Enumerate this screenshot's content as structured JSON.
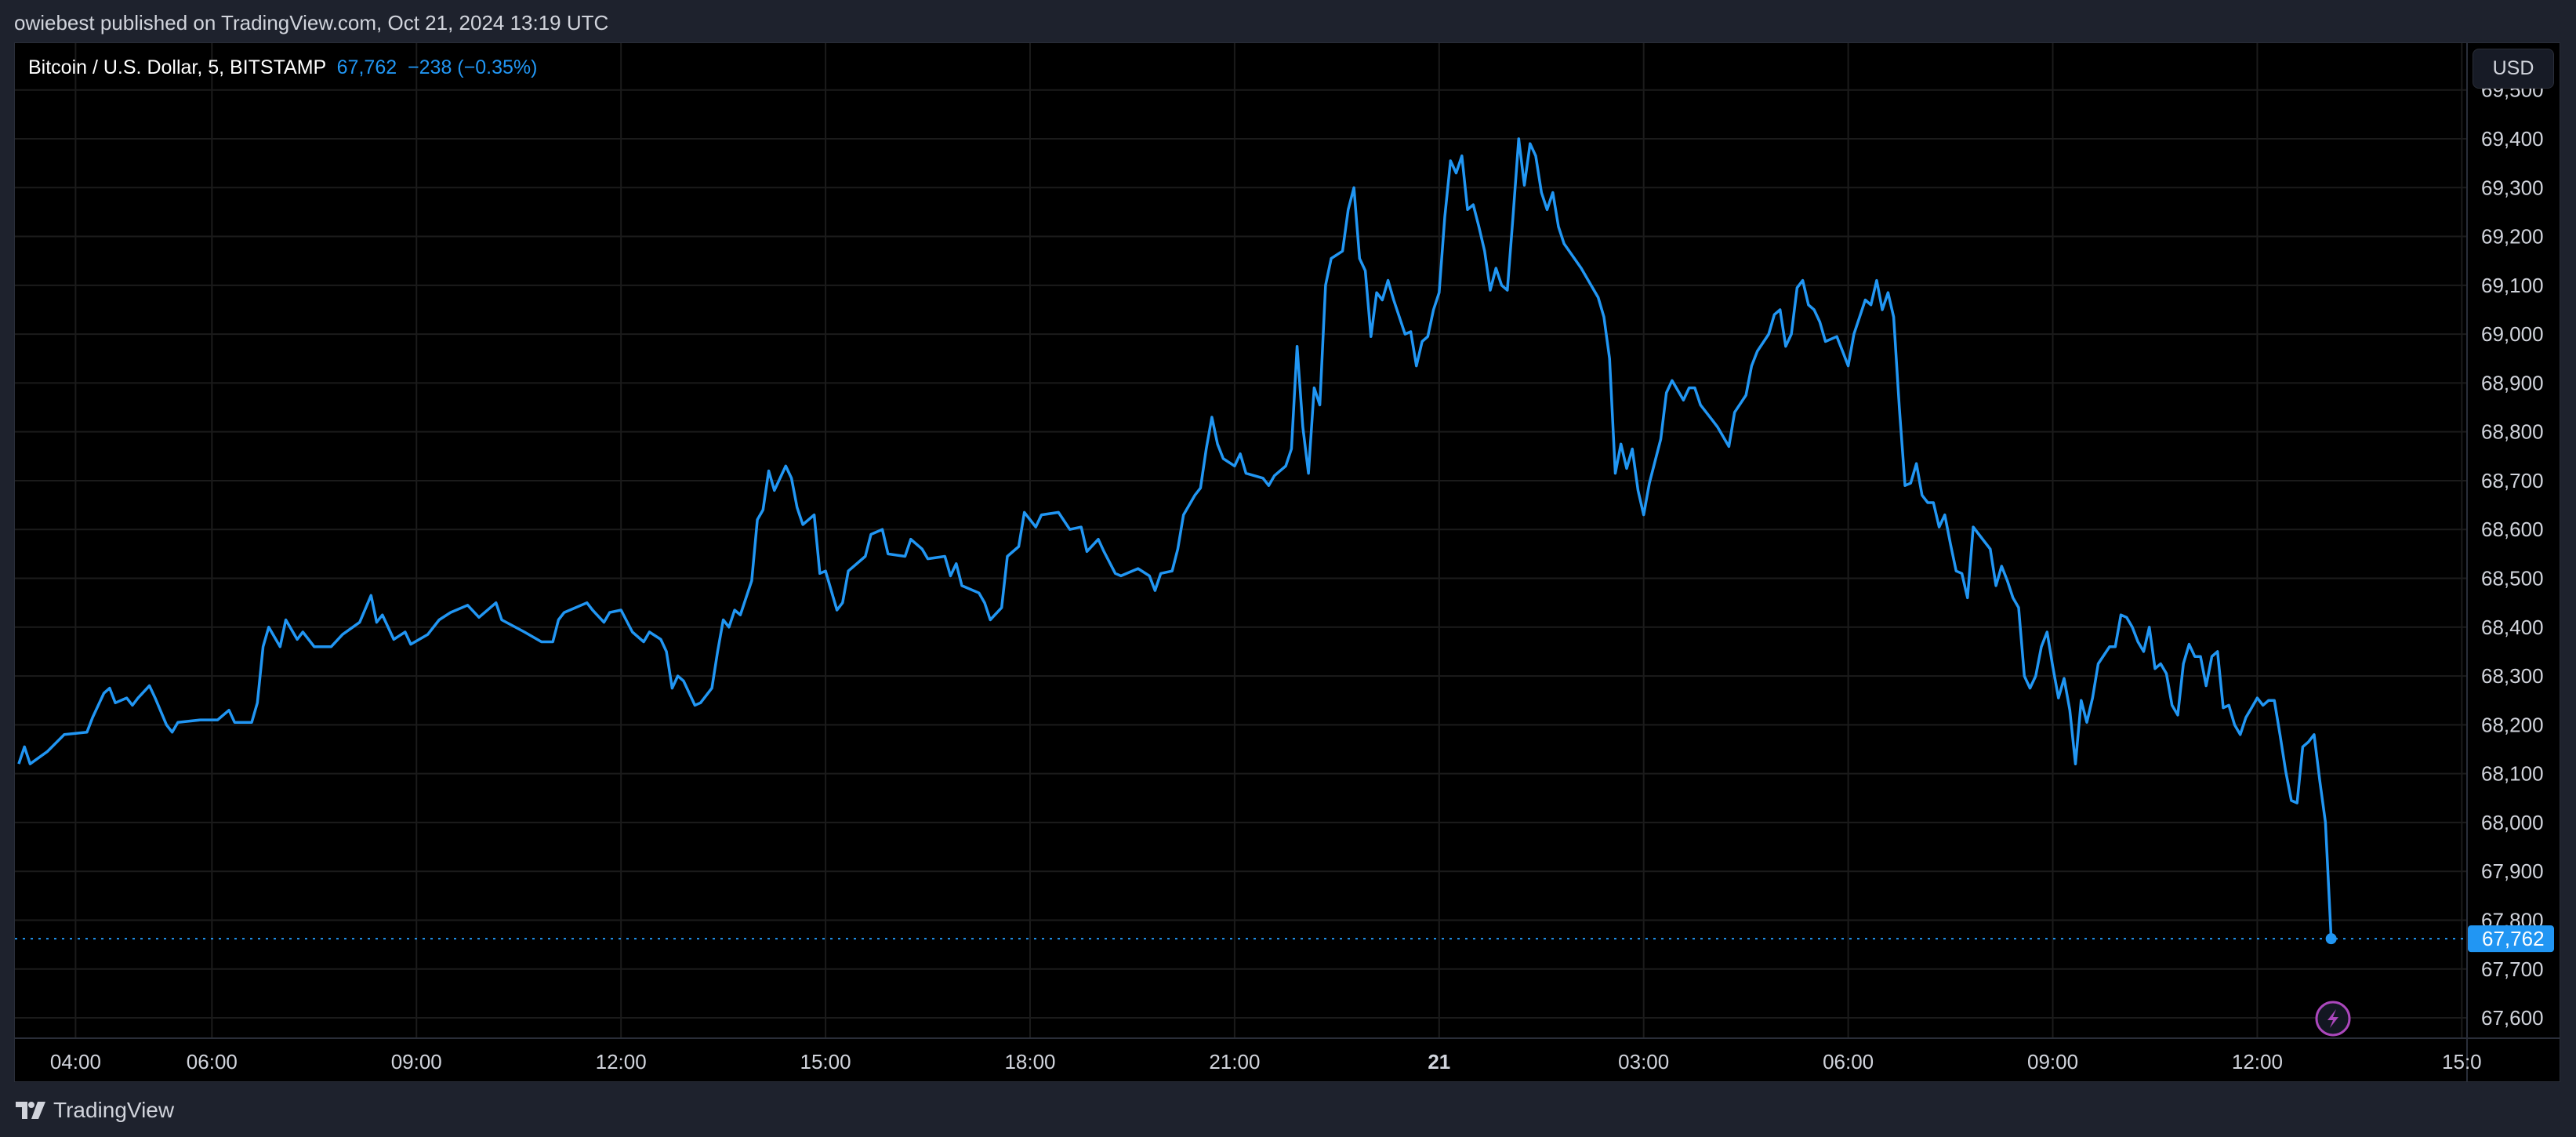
{
  "header": {
    "published": "owiebest published on TradingView.com, Oct 21, 2024 13:19 UTC"
  },
  "legend": {
    "symbol": "Bitcoin / U.S. Dollar, 5, BITSTAMP",
    "last": "67,762",
    "change": "−238 (−0.35%)"
  },
  "currency_button": "USD",
  "footer": {
    "brand": "TradingView"
  },
  "colors": {
    "line": "#2196f3",
    "background": "#000000",
    "page": "#1e222d",
    "grid": "#1b1b1b",
    "alert_icon": "#ab47bc"
  },
  "alert_icon": "lightning-icon",
  "chart_data": {
    "type": "line",
    "title": "",
    "grid": true,
    "y_scale": "linear",
    "ylim": [
      67550,
      69500
    ],
    "xlim": [
      "10-20 03:05",
      "10-21 15:15"
    ],
    "y_ticks": [
      "69,500",
      "69,400",
      "69,300",
      "69,200",
      "69,100",
      "69,000",
      "68,900",
      "68,800",
      "68,700",
      "68,600",
      "68,500",
      "68,400",
      "68,300",
      "68,200",
      "68,100",
      "68,000",
      "67,900",
      "67,800",
      "67,700",
      "67,600"
    ],
    "x_ticks": [
      {
        "t": "10-20 04:00",
        "label": "04:00"
      },
      {
        "t": "10-20 06:00",
        "label": "06:00"
      },
      {
        "t": "10-20 09:00",
        "label": "09:00"
      },
      {
        "t": "10-20 12:00",
        "label": "12:00"
      },
      {
        "t": "10-20 15:00",
        "label": "15:00"
      },
      {
        "t": "10-20 18:00",
        "label": "18:00"
      },
      {
        "t": "10-20 21:00",
        "label": "21:00"
      },
      {
        "t": "10-21 00:00",
        "label": "21",
        "bold": true
      },
      {
        "t": "10-21 03:00",
        "label": "03:00"
      },
      {
        "t": "10-21 06:00",
        "label": "06:00"
      },
      {
        "t": "10-21 09:00",
        "label": "09:00"
      },
      {
        "t": "10-21 12:00",
        "label": "12:00"
      },
      {
        "t": "10-21 15:00",
        "label": "15:0"
      }
    ],
    "last_price": {
      "value": 67762,
      "label": "67,762"
    },
    "points": [
      [
        "10-20 03:10",
        68120
      ],
      [
        "10-20 03:15",
        68155
      ],
      [
        "10-20 03:20",
        68120
      ],
      [
        "10-20 03:35",
        68145
      ],
      [
        "10-20 03:50",
        68180
      ],
      [
        "10-20 04:10",
        68185
      ],
      [
        "10-20 04:15",
        68215
      ],
      [
        "10-20 04:25",
        68265
      ],
      [
        "10-20 04:30",
        68275
      ],
      [
        "10-20 04:35",
        68245
      ],
      [
        "10-20 04:45",
        68255
      ],
      [
        "10-20 04:50",
        68240
      ],
      [
        "10-20 04:55",
        68255
      ],
      [
        "10-20 05:05",
        68280
      ],
      [
        "10-20 05:10",
        68255
      ],
      [
        "10-20 05:20",
        68200
      ],
      [
        "10-20 05:25",
        68185
      ],
      [
        "10-20 05:30",
        68205
      ],
      [
        "10-20 05:50",
        68210
      ],
      [
        "10-20 06:05",
        68210
      ],
      [
        "10-20 06:15",
        68230
      ],
      [
        "10-20 06:20",
        68205
      ],
      [
        "10-20 06:35",
        68205
      ],
      [
        "10-20 06:40",
        68245
      ],
      [
        "10-20 06:45",
        68360
      ],
      [
        "10-20 06:50",
        68400
      ],
      [
        "10-20 07:00",
        68360
      ],
      [
        "10-20 07:05",
        68415
      ],
      [
        "10-20 07:15",
        68375
      ],
      [
        "10-20 07:20",
        68390
      ],
      [
        "10-20 07:30",
        68360
      ],
      [
        "10-20 07:45",
        68360
      ],
      [
        "10-20 07:55",
        68385
      ],
      [
        "10-20 08:10",
        68410
      ],
      [
        "10-20 08:20",
        68465
      ],
      [
        "10-20 08:25",
        68410
      ],
      [
        "10-20 08:30",
        68425
      ],
      [
        "10-20 08:40",
        68375
      ],
      [
        "10-20 08:50",
        68390
      ],
      [
        "10-20 08:55",
        68365
      ],
      [
        "10-20 09:10",
        68385
      ],
      [
        "10-20 09:20",
        68415
      ],
      [
        "10-20 09:30",
        68430
      ],
      [
        "10-20 09:45",
        68445
      ],
      [
        "10-20 09:55",
        68420
      ],
      [
        "10-20 10:10",
        68450
      ],
      [
        "10-20 10:15",
        68415
      ],
      [
        "10-20 10:35",
        68390
      ],
      [
        "10-20 10:50",
        68370
      ],
      [
        "10-20 11:00",
        68370
      ],
      [
        "10-20 11:05",
        68415
      ],
      [
        "10-20 11:10",
        68430
      ],
      [
        "10-20 11:30",
        68450
      ],
      [
        "10-20 11:35",
        68435
      ],
      [
        "10-20 11:45",
        68410
      ],
      [
        "10-20 11:50",
        68430
      ],
      [
        "10-20 12:00",
        68435
      ],
      [
        "10-20 12:10",
        68390
      ],
      [
        "10-20 12:20",
        68370
      ],
      [
        "10-20 12:25",
        68390
      ],
      [
        "10-20 12:35",
        68375
      ],
      [
        "10-20 12:40",
        68350
      ],
      [
        "10-20 12:45",
        68275
      ],
      [
        "10-20 12:50",
        68300
      ],
      [
        "10-20 12:55",
        68290
      ],
      [
        "10-20 13:05",
        68240
      ],
      [
        "10-20 13:10",
        68245
      ],
      [
        "10-20 13:20",
        68275
      ],
      [
        "10-20 13:25",
        68350
      ],
      [
        "10-20 13:30",
        68415
      ],
      [
        "10-20 13:35",
        68400
      ],
      [
        "10-20 13:40",
        68435
      ],
      [
        "10-20 13:45",
        68425
      ],
      [
        "10-20 13:55",
        68495
      ],
      [
        "10-20 14:00",
        68620
      ],
      [
        "10-20 14:05",
        68640
      ],
      [
        "10-20 14:10",
        68720
      ],
      [
        "10-20 14:15",
        68680
      ],
      [
        "10-20 14:25",
        68730
      ],
      [
        "10-20 14:30",
        68705
      ],
      [
        "10-20 14:35",
        68645
      ],
      [
        "10-20 14:40",
        68610
      ],
      [
        "10-20 14:50",
        68630
      ],
      [
        "10-20 14:55",
        68510
      ],
      [
        "10-20 15:00",
        68515
      ],
      [
        "10-20 15:10",
        68435
      ],
      [
        "10-20 15:15",
        68450
      ],
      [
        "10-20 15:20",
        68515
      ],
      [
        "10-20 15:35",
        68545
      ],
      [
        "10-20 15:40",
        68590
      ],
      [
        "10-20 15:50",
        68600
      ],
      [
        "10-20 15:55",
        68550
      ],
      [
        "10-20 16:10",
        68545
      ],
      [
        "10-20 16:15",
        68580
      ],
      [
        "10-20 16:25",
        68560
      ],
      [
        "10-20 16:30",
        68540
      ],
      [
        "10-20 16:45",
        68545
      ],
      [
        "10-20 16:50",
        68505
      ],
      [
        "10-20 16:55",
        68530
      ],
      [
        "10-20 17:00",
        68485
      ],
      [
        "10-20 17:15",
        68470
      ],
      [
        "10-20 17:20",
        68450
      ],
      [
        "10-20 17:25",
        68415
      ],
      [
        "10-20 17:35",
        68440
      ],
      [
        "10-20 17:40",
        68545
      ],
      [
        "10-20 17:50",
        68565
      ],
      [
        "10-20 17:55",
        68635
      ],
      [
        "10-20 18:05",
        68605
      ],
      [
        "10-20 18:10",
        68630
      ],
      [
        "10-20 18:25",
        68635
      ],
      [
        "10-20 18:35",
        68600
      ],
      [
        "10-20 18:45",
        68605
      ],
      [
        "10-20 18:50",
        68555
      ],
      [
        "10-20 19:00",
        68580
      ],
      [
        "10-20 19:05",
        68555
      ],
      [
        "10-20 19:15",
        68510
      ],
      [
        "10-20 19:20",
        68505
      ],
      [
        "10-20 19:35",
        68520
      ],
      [
        "10-20 19:45",
        68505
      ],
      [
        "10-20 19:50",
        68475
      ],
      [
        "10-20 19:55",
        68510
      ],
      [
        "10-20 20:05",
        68515
      ],
      [
        "10-20 20:10",
        68560
      ],
      [
        "10-20 20:15",
        68630
      ],
      [
        "10-20 20:25",
        68670
      ],
      [
        "10-20 20:30",
        68685
      ],
      [
        "10-20 20:35",
        68765
      ],
      [
        "10-20 20:40",
        68830
      ],
      [
        "10-20 20:45",
        68775
      ],
      [
        "10-20 20:50",
        68745
      ],
      [
        "10-20 21:00",
        68730
      ],
      [
        "10-20 21:05",
        68755
      ],
      [
        "10-20 21:10",
        68715
      ],
      [
        "10-20 21:25",
        68705
      ],
      [
        "10-20 21:30",
        68690
      ],
      [
        "10-20 21:35",
        68710
      ],
      [
        "10-20 21:45",
        68730
      ],
      [
        "10-20 21:50",
        68765
      ],
      [
        "10-20 21:55",
        68975
      ],
      [
        "10-20 22:00",
        68810
      ],
      [
        "10-20 22:05",
        68715
      ],
      [
        "10-20 22:10",
        68890
      ],
      [
        "10-20 22:15",
        68855
      ],
      [
        "10-20 22:20",
        69100
      ],
      [
        "10-20 22:25",
        69155
      ],
      [
        "10-20 22:35",
        69170
      ],
      [
        "10-20 22:40",
        69255
      ],
      [
        "10-20 22:45",
        69300
      ],
      [
        "10-20 22:50",
        69155
      ],
      [
        "10-20 22:55",
        69130
      ],
      [
        "10-20 23:00",
        68995
      ],
      [
        "10-20 23:05",
        69085
      ],
      [
        "10-20 23:10",
        69070
      ],
      [
        "10-20 23:15",
        69110
      ],
      [
        "10-20 23:20",
        69070
      ],
      [
        "10-20 23:30",
        69000
      ],
      [
        "10-20 23:35",
        69005
      ],
      [
        "10-20 23:40",
        68935
      ],
      [
        "10-20 23:45",
        68985
      ],
      [
        "10-20 23:50",
        68995
      ],
      [
        "10-20 23:55",
        69050
      ],
      [
        "10-21 00:00",
        69085
      ],
      [
        "10-21 00:05",
        69240
      ],
      [
        "10-21 00:10",
        69355
      ],
      [
        "10-21 00:15",
        69330
      ],
      [
        "10-21 00:20",
        69365
      ],
      [
        "10-21 00:25",
        69255
      ],
      [
        "10-21 00:30",
        69265
      ],
      [
        "10-21 00:35",
        69220
      ],
      [
        "10-21 00:40",
        69170
      ],
      [
        "10-21 00:45",
        69090
      ],
      [
        "10-21 00:50",
        69135
      ],
      [
        "10-21 00:55",
        69100
      ],
      [
        "10-21 01:00",
        69090
      ],
      [
        "10-21 01:05",
        69240
      ],
      [
        "10-21 01:10",
        69400
      ],
      [
        "10-21 01:15",
        69305
      ],
      [
        "10-21 01:20",
        69390
      ],
      [
        "10-21 01:25",
        69365
      ],
      [
        "10-21 01:30",
        69290
      ],
      [
        "10-21 01:35",
        69255
      ],
      [
        "10-21 01:40",
        69290
      ],
      [
        "10-21 01:45",
        69220
      ],
      [
        "10-21 01:50",
        69185
      ],
      [
        "10-21 02:05",
        69135
      ],
      [
        "10-21 02:20",
        69075
      ],
      [
        "10-21 02:25",
        69035
      ],
      [
        "10-21 02:30",
        68950
      ],
      [
        "10-21 02:35",
        68715
      ],
      [
        "10-21 02:40",
        68775
      ],
      [
        "10-21 02:45",
        68725
      ],
      [
        "10-21 02:50",
        68765
      ],
      [
        "10-21 02:55",
        68680
      ],
      [
        "10-21 03:00",
        68630
      ],
      [
        "10-21 03:05",
        68695
      ],
      [
        "10-21 03:15",
        68785
      ],
      [
        "10-21 03:20",
        68880
      ],
      [
        "10-21 03:25",
        68905
      ],
      [
        "10-21 03:35",
        68865
      ],
      [
        "10-21 03:40",
        68890
      ],
      [
        "10-21 03:45",
        68890
      ],
      [
        "10-21 03:50",
        68855
      ],
      [
        "10-21 04:00",
        68825
      ],
      [
        "10-21 04:05",
        68810
      ],
      [
        "10-21 04:15",
        68770
      ],
      [
        "10-21 04:20",
        68840
      ],
      [
        "10-21 04:30",
        68875
      ],
      [
        "10-21 04:35",
        68935
      ],
      [
        "10-21 04:40",
        68965
      ],
      [
        "10-21 04:50",
        69000
      ],
      [
        "10-21 04:55",
        69040
      ],
      [
        "10-21 05:00",
        69050
      ],
      [
        "10-21 05:05",
        68975
      ],
      [
        "10-21 05:10",
        69000
      ],
      [
        "10-21 05:15",
        69095
      ],
      [
        "10-21 05:20",
        69110
      ],
      [
        "10-21 05:25",
        69060
      ],
      [
        "10-21 05:30",
        69050
      ],
      [
        "10-21 05:35",
        69025
      ],
      [
        "10-21 05:40",
        68985
      ],
      [
        "10-21 05:50",
        68995
      ],
      [
        "10-21 05:55",
        68965
      ],
      [
        "10-21 06:00",
        68935
      ],
      [
        "10-21 06:05",
        69000
      ],
      [
        "10-21 06:15",
        69070
      ],
      [
        "10-21 06:20",
        69060
      ],
      [
        "10-21 06:25",
        69110
      ],
      [
        "10-21 06:30",
        69050
      ],
      [
        "10-21 06:35",
        69085
      ],
      [
        "10-21 06:40",
        69035
      ],
      [
        "10-21 06:45",
        68850
      ],
      [
        "10-21 06:50",
        68690
      ],
      [
        "10-21 06:55",
        68695
      ],
      [
        "10-21 07:00",
        68735
      ],
      [
        "10-21 07:05",
        68670
      ],
      [
        "10-21 07:10",
        68655
      ],
      [
        "10-21 07:15",
        68655
      ],
      [
        "10-21 07:20",
        68605
      ],
      [
        "10-21 07:25",
        68630
      ],
      [
        "10-21 07:30",
        68570
      ],
      [
        "10-21 07:35",
        68515
      ],
      [
        "10-21 07:40",
        68510
      ],
      [
        "10-21 07:45",
        68460
      ],
      [
        "10-21 07:50",
        68605
      ],
      [
        "10-21 07:55",
        68590
      ],
      [
        "10-21 08:05",
        68560
      ],
      [
        "10-21 08:10",
        68485
      ],
      [
        "10-21 08:15",
        68525
      ],
      [
        "10-21 08:20",
        68495
      ],
      [
        "10-21 08:25",
        68460
      ],
      [
        "10-21 08:30",
        68440
      ],
      [
        "10-21 08:35",
        68300
      ],
      [
        "10-21 08:40",
        68275
      ],
      [
        "10-21 08:45",
        68300
      ],
      [
        "10-21 08:50",
        68360
      ],
      [
        "10-21 08:55",
        68390
      ],
      [
        "10-21 09:00",
        68320
      ],
      [
        "10-21 09:05",
        68255
      ],
      [
        "10-21 09:10",
        68295
      ],
      [
        "10-21 09:15",
        68230
      ],
      [
        "10-21 09:20",
        68120
      ],
      [
        "10-21 09:25",
        68250
      ],
      [
        "10-21 09:30",
        68205
      ],
      [
        "10-21 09:35",
        68255
      ],
      [
        "10-21 09:40",
        68325
      ],
      [
        "10-21 09:50",
        68360
      ],
      [
        "10-21 09:55",
        68360
      ],
      [
        "10-21 10:00",
        68425
      ],
      [
        "10-21 10:05",
        68420
      ],
      [
        "10-21 10:10",
        68400
      ],
      [
        "10-21 10:15",
        68370
      ],
      [
        "10-21 10:20",
        68350
      ],
      [
        "10-21 10:25",
        68400
      ],
      [
        "10-21 10:30",
        68315
      ],
      [
        "10-21 10:35",
        68325
      ],
      [
        "10-21 10:40",
        68305
      ],
      [
        "10-21 10:45",
        68240
      ],
      [
        "10-21 10:50",
        68220
      ],
      [
        "10-21 10:55",
        68325
      ],
      [
        "10-21 11:00",
        68365
      ],
      [
        "10-21 11:05",
        68340
      ],
      [
        "10-21 11:10",
        68340
      ],
      [
        "10-21 11:15",
        68280
      ],
      [
        "10-21 11:20",
        68340
      ],
      [
        "10-21 11:25",
        68350
      ],
      [
        "10-21 11:30",
        68235
      ],
      [
        "10-21 11:35",
        68240
      ],
      [
        "10-21 11:40",
        68200
      ],
      [
        "10-21 11:45",
        68180
      ],
      [
        "10-21 11:50",
        68215
      ],
      [
        "10-21 11:55",
        68235
      ],
      [
        "10-21 12:00",
        68255
      ],
      [
        "10-21 12:05",
        68240
      ],
      [
        "10-21 12:10",
        68250
      ],
      [
        "10-21 12:15",
        68250
      ],
      [
        "10-21 12:20",
        68180
      ],
      [
        "10-21 12:25",
        68105
      ],
      [
        "10-21 12:30",
        68045
      ],
      [
        "10-21 12:35",
        68040
      ],
      [
        "10-21 12:40",
        68155
      ],
      [
        "10-21 12:45",
        68165
      ],
      [
        "10-21 12:50",
        68180
      ],
      [
        "10-21 12:55",
        68085
      ],
      [
        "10-21 13:00",
        68000
      ],
      [
        "10-21 13:05",
        67762
      ]
    ]
  }
}
